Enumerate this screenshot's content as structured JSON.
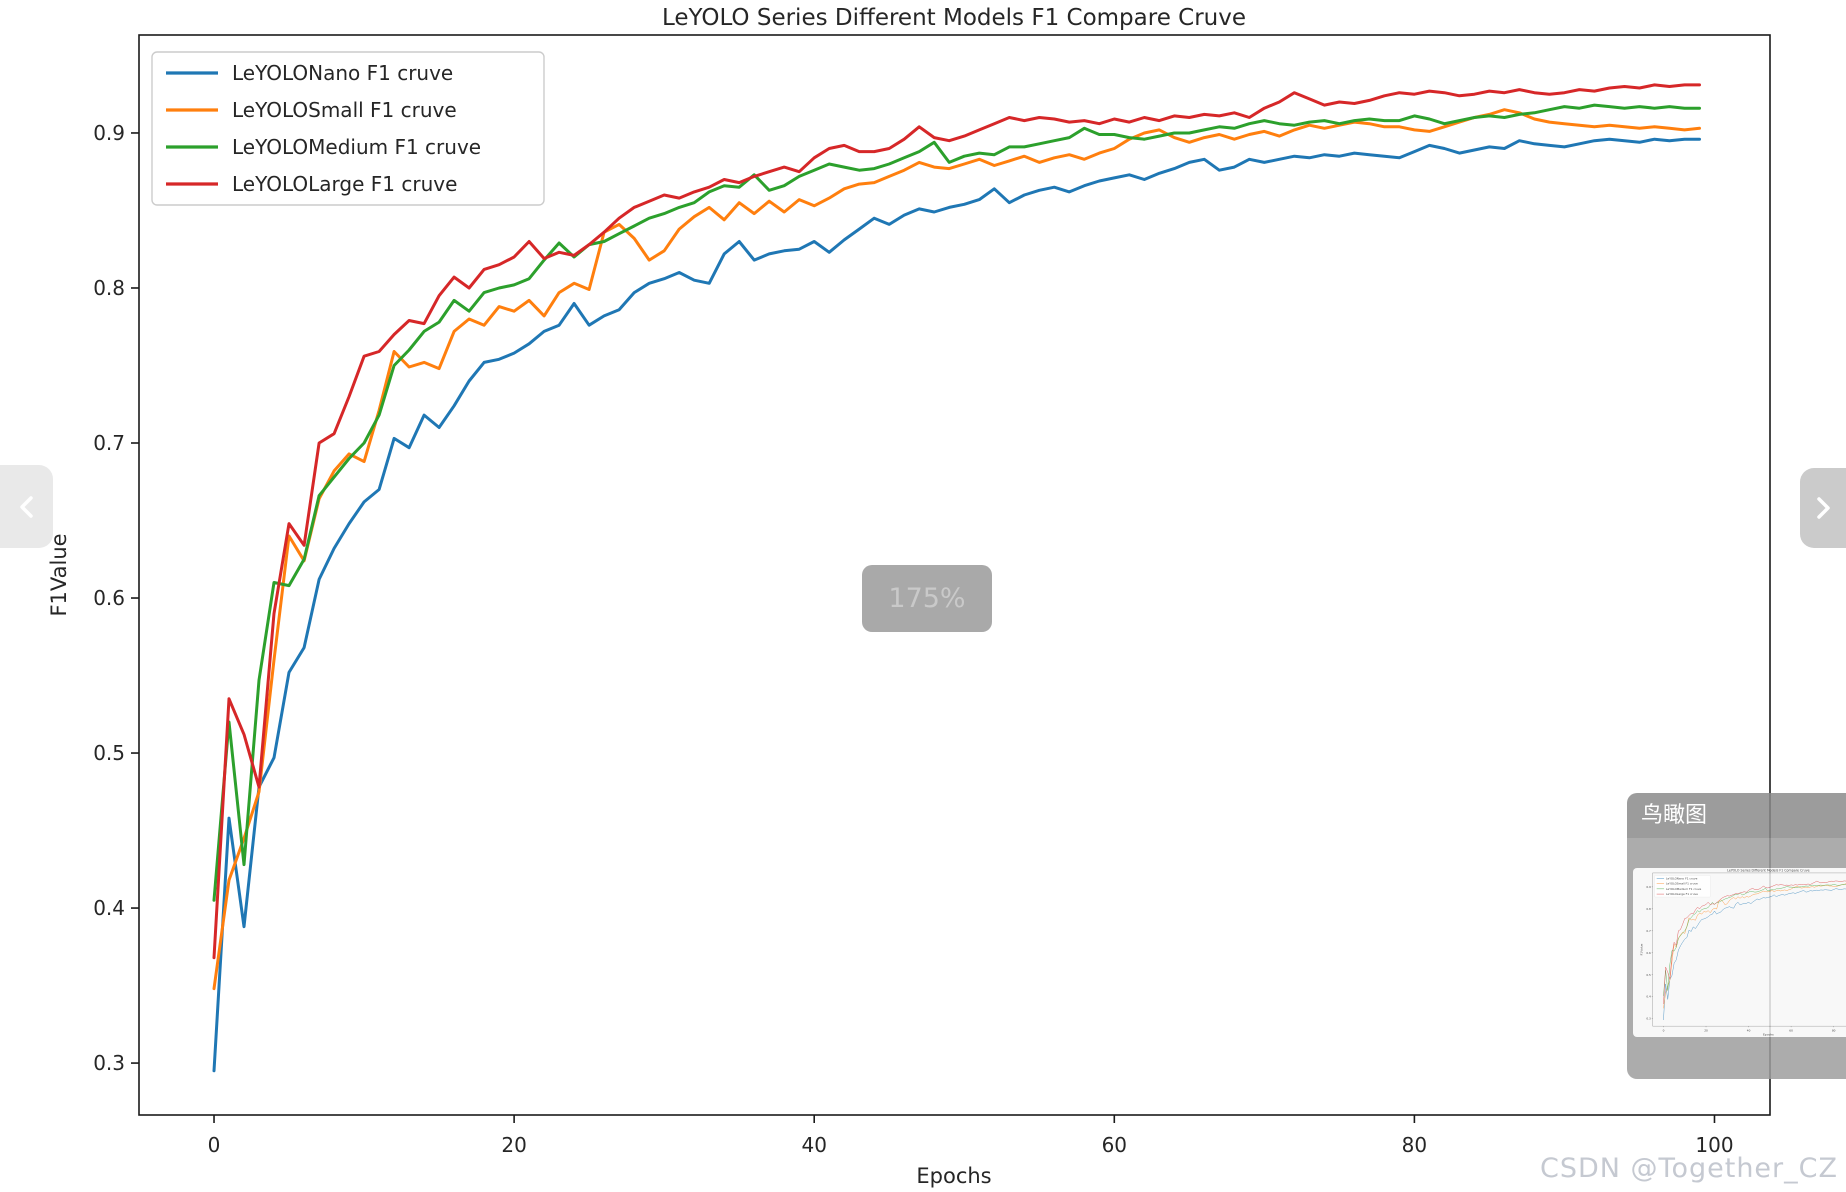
{
  "viewer": {
    "zoom_badge": "175%",
    "minimap_title": "鸟瞰图",
    "watermark": "CSDN @Together_CZ",
    "nav_prev_icon": "chevron-left",
    "nav_next_icon": "chevron-right"
  },
  "chart_data": {
    "type": "line",
    "title": "LeYOLO Series Different Models F1 Compare Cruve",
    "xlabel": "Epochs",
    "ylabel": "F1Value",
    "x_ticks": [
      0,
      20,
      40,
      60,
      80,
      100
    ],
    "y_ticks": [
      0.3,
      0.4,
      0.5,
      0.6,
      0.7,
      0.8,
      0.9
    ],
    "xlim": [
      -5,
      103.7
    ],
    "ylim": [
      0.2665,
      0.9632
    ],
    "grid": false,
    "legend_position": "upper-left",
    "epoch_start": 0,
    "epoch_step": 1,
    "series": [
      {
        "name": "LeYOLONano F1 cruve",
        "color": "#1f77b4",
        "values": [
          0.295,
          0.458,
          0.388,
          0.478,
          0.497,
          0.552,
          0.568,
          0.612,
          0.632,
          0.648,
          0.662,
          0.67,
          0.703,
          0.697,
          0.718,
          0.71,
          0.724,
          0.74,
          0.752,
          0.754,
          0.758,
          0.764,
          0.772,
          0.776,
          0.79,
          0.776,
          0.782,
          0.786,
          0.797,
          0.803,
          0.806,
          0.81,
          0.805,
          0.803,
          0.822,
          0.83,
          0.818,
          0.822,
          0.824,
          0.825,
          0.83,
          0.823,
          0.831,
          0.838,
          0.845,
          0.841,
          0.847,
          0.851,
          0.849,
          0.852,
          0.854,
          0.857,
          0.864,
          0.855,
          0.86,
          0.863,
          0.865,
          0.862,
          0.866,
          0.869,
          0.871,
          0.873,
          0.87,
          0.874,
          0.877,
          0.881,
          0.883,
          0.876,
          0.878,
          0.883,
          0.881,
          0.883,
          0.885,
          0.884,
          0.886,
          0.885,
          0.887,
          0.886,
          0.885,
          0.884,
          0.888,
          0.892,
          0.89,
          0.887,
          0.889,
          0.891,
          0.89,
          0.895,
          0.893,
          0.892,
          0.891,
          0.893,
          0.895,
          0.896,
          0.895,
          0.894,
          0.896,
          0.895,
          0.896,
          0.896
        ]
      },
      {
        "name": "LeYOLOSmall F1 cruve",
        "color": "#ff7f0e",
        "values": [
          0.348,
          0.418,
          0.445,
          0.475,
          0.56,
          0.64,
          0.624,
          0.664,
          0.682,
          0.693,
          0.688,
          0.721,
          0.759,
          0.749,
          0.752,
          0.748,
          0.772,
          0.78,
          0.776,
          0.788,
          0.785,
          0.792,
          0.782,
          0.797,
          0.803,
          0.799,
          0.836,
          0.841,
          0.832,
          0.818,
          0.824,
          0.838,
          0.846,
          0.852,
          0.844,
          0.855,
          0.848,
          0.856,
          0.849,
          0.857,
          0.853,
          0.858,
          0.864,
          0.867,
          0.868,
          0.872,
          0.876,
          0.881,
          0.878,
          0.877,
          0.88,
          0.883,
          0.879,
          0.882,
          0.885,
          0.881,
          0.884,
          0.886,
          0.883,
          0.887,
          0.89,
          0.896,
          0.9,
          0.902,
          0.897,
          0.894,
          0.897,
          0.899,
          0.896,
          0.899,
          0.901,
          0.898,
          0.902,
          0.905,
          0.903,
          0.905,
          0.907,
          0.906,
          0.904,
          0.904,
          0.902,
          0.901,
          0.904,
          0.907,
          0.91,
          0.912,
          0.915,
          0.913,
          0.909,
          0.907,
          0.906,
          0.905,
          0.904,
          0.905,
          0.904,
          0.903,
          0.904,
          0.903,
          0.902,
          0.903
        ]
      },
      {
        "name": "LeYOLOMedium F1 cruve",
        "color": "#2ca02c",
        "values": [
          0.405,
          0.52,
          0.428,
          0.547,
          0.61,
          0.608,
          0.625,
          0.666,
          0.678,
          0.69,
          0.7,
          0.718,
          0.75,
          0.76,
          0.772,
          0.778,
          0.792,
          0.785,
          0.797,
          0.8,
          0.802,
          0.806,
          0.818,
          0.829,
          0.82,
          0.828,
          0.83,
          0.835,
          0.84,
          0.845,
          0.848,
          0.852,
          0.855,
          0.862,
          0.866,
          0.865,
          0.873,
          0.863,
          0.866,
          0.872,
          0.876,
          0.88,
          0.878,
          0.876,
          0.877,
          0.88,
          0.884,
          0.888,
          0.894,
          0.881,
          0.885,
          0.887,
          0.886,
          0.891,
          0.891,
          0.893,
          0.895,
          0.897,
          0.903,
          0.899,
          0.899,
          0.897,
          0.896,
          0.898,
          0.9,
          0.9,
          0.902,
          0.904,
          0.903,
          0.906,
          0.908,
          0.906,
          0.905,
          0.907,
          0.908,
          0.906,
          0.908,
          0.909,
          0.908,
          0.908,
          0.911,
          0.909,
          0.906,
          0.908,
          0.91,
          0.911,
          0.91,
          0.912,
          0.913,
          0.915,
          0.917,
          0.916,
          0.918,
          0.917,
          0.916,
          0.917,
          0.916,
          0.917,
          0.916,
          0.916
        ]
      },
      {
        "name": "LeYOLOLarge F1 cruve",
        "color": "#d62728",
        "values": [
          0.368,
          0.535,
          0.512,
          0.478,
          0.59,
          0.648,
          0.634,
          0.7,
          0.706,
          0.73,
          0.756,
          0.759,
          0.77,
          0.779,
          0.777,
          0.795,
          0.807,
          0.8,
          0.812,
          0.815,
          0.82,
          0.83,
          0.819,
          0.823,
          0.821,
          0.828,
          0.836,
          0.845,
          0.852,
          0.856,
          0.86,
          0.858,
          0.862,
          0.865,
          0.87,
          0.868,
          0.872,
          0.875,
          0.878,
          0.875,
          0.884,
          0.89,
          0.892,
          0.888,
          0.888,
          0.89,
          0.896,
          0.904,
          0.897,
          0.895,
          0.898,
          0.902,
          0.906,
          0.91,
          0.908,
          0.91,
          0.909,
          0.907,
          0.908,
          0.906,
          0.909,
          0.907,
          0.91,
          0.908,
          0.911,
          0.91,
          0.912,
          0.911,
          0.913,
          0.91,
          0.916,
          0.92,
          0.926,
          0.922,
          0.918,
          0.92,
          0.919,
          0.921,
          0.924,
          0.926,
          0.925,
          0.927,
          0.926,
          0.924,
          0.925,
          0.927,
          0.926,
          0.928,
          0.926,
          0.925,
          0.926,
          0.928,
          0.927,
          0.929,
          0.93,
          0.929,
          0.931,
          0.93,
          0.931,
          0.931
        ]
      }
    ]
  }
}
